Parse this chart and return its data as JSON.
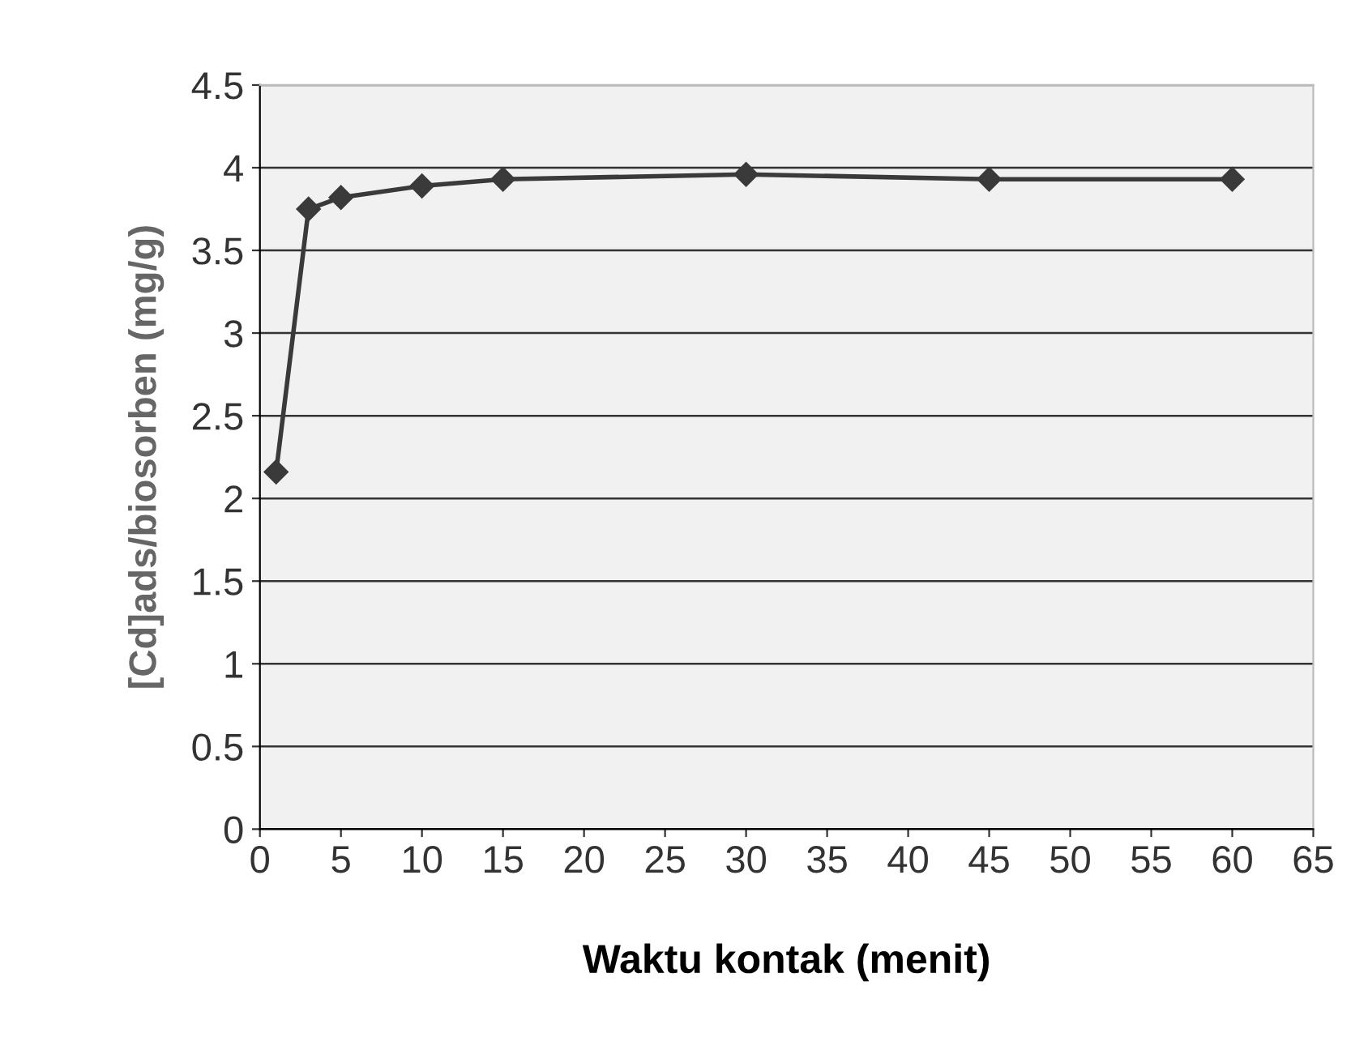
{
  "chart_data": {
    "type": "line",
    "xlabel": "Waktu kontak (menit)",
    "ylabel": "[Cd]ads/biosorben (mg/g)",
    "x": [
      1,
      3,
      5,
      10,
      15,
      30,
      45,
      60
    ],
    "series": [
      {
        "color": "#3a3a3a",
        "values": [
          2.16,
          3.75,
          3.82,
          3.89,
          3.93,
          3.96,
          3.93,
          3.93
        ]
      }
    ],
    "xlim": [
      0,
      65
    ],
    "xticks": [
      0,
      5,
      10,
      15,
      20,
      25,
      30,
      35,
      40,
      45,
      50,
      55,
      60,
      65
    ],
    "ylim": [
      0,
      4.5
    ],
    "yticks": [
      0,
      0.5,
      1,
      1.5,
      2,
      2.5,
      3,
      3.5,
      4,
      4.5
    ],
    "grid": "y",
    "marker": "diamond",
    "line_style": "solid"
  }
}
